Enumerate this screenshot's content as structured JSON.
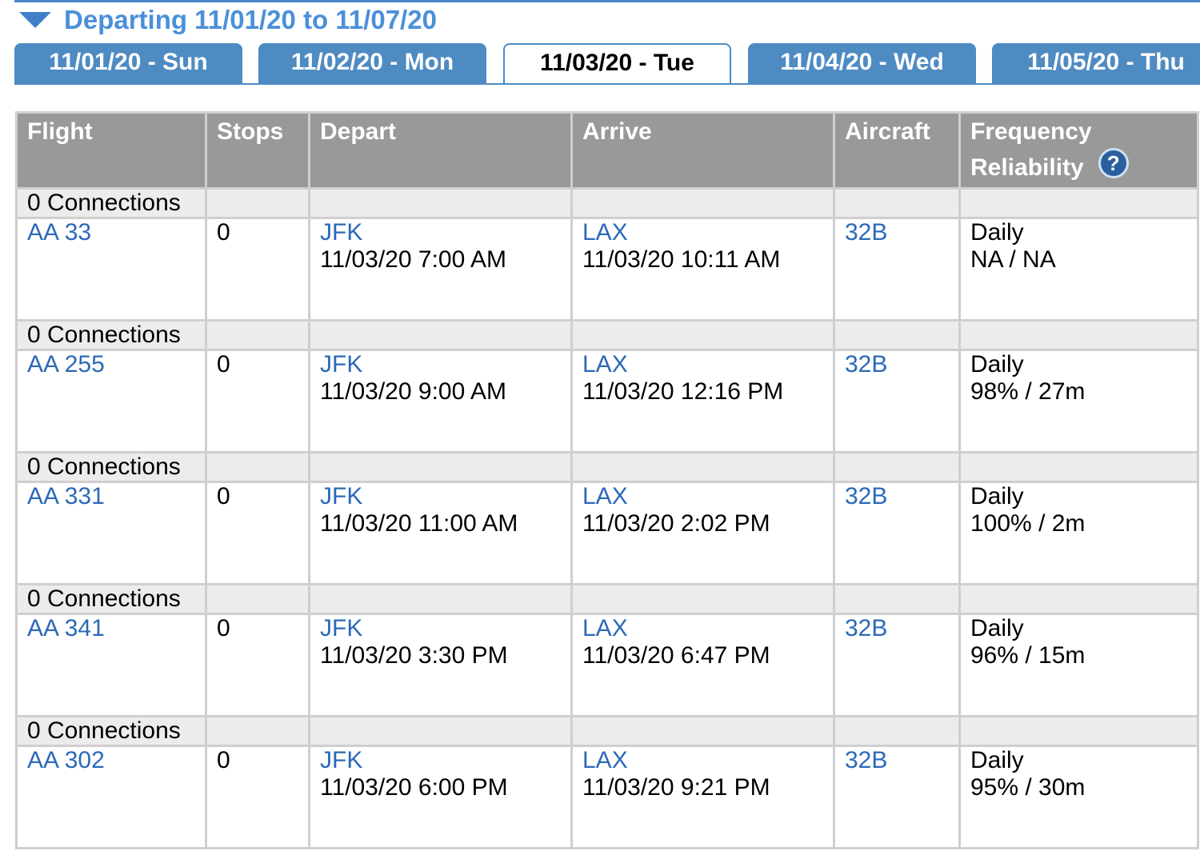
{
  "title": "Departing 11/01/20 to 11/07/20",
  "tabs": [
    "11/01/20 - Sun",
    "11/02/20 - Mon",
    "11/03/20 - Tue",
    "11/04/20 - Wed",
    "11/05/20 - Thu"
  ],
  "active_tab": "11/03/20 - Tue",
  "columns": {
    "flight": "Flight",
    "stops": "Stops",
    "depart": "Depart",
    "arrive": "Arrive",
    "aircraft": "Aircraft",
    "frequency": "Frequency",
    "reliability": "Reliability"
  },
  "rows": [
    {
      "connections": "0 Connections",
      "flight": "AA 33",
      "stops": "0",
      "dep_airport": "JFK",
      "dep_time": "11/03/20 7:00 AM",
      "arr_airport": "LAX",
      "arr_time": "11/03/20 10:11 AM",
      "aircraft": "32B",
      "frequency": "Daily",
      "reliability": "NA / NA"
    },
    {
      "connections": "0 Connections",
      "flight": "AA 255",
      "stops": "0",
      "dep_airport": "JFK",
      "dep_time": "11/03/20 9:00 AM",
      "arr_airport": "LAX",
      "arr_time": "11/03/20 12:16 PM",
      "aircraft": "32B",
      "frequency": "Daily",
      "reliability": "98% / 27m"
    },
    {
      "connections": "0 Connections",
      "flight": "AA 331",
      "stops": "0",
      "dep_airport": "JFK",
      "dep_time": "11/03/20 11:00 AM",
      "arr_airport": "LAX",
      "arr_time": "11/03/20 2:02 PM",
      "aircraft": "32B",
      "frequency": "Daily",
      "reliability": "100% / 2m"
    },
    {
      "connections": "0 Connections",
      "flight": "AA 341",
      "stops": "0",
      "dep_airport": "JFK",
      "dep_time": "11/03/20 3:30 PM",
      "arr_airport": "LAX",
      "arr_time": "11/03/20 6:47 PM",
      "aircraft": "32B",
      "frequency": "Daily",
      "reliability": "96% / 15m"
    },
    {
      "connections": "0 Connections",
      "flight": "AA 302",
      "stops": "0",
      "dep_airport": "JFK",
      "dep_time": "11/03/20 6:00 PM",
      "arr_airport": "LAX",
      "arr_time": "11/03/20 9:21 PM",
      "aircraft": "32B",
      "frequency": "Daily",
      "reliability": "95% / 30m"
    }
  ]
}
